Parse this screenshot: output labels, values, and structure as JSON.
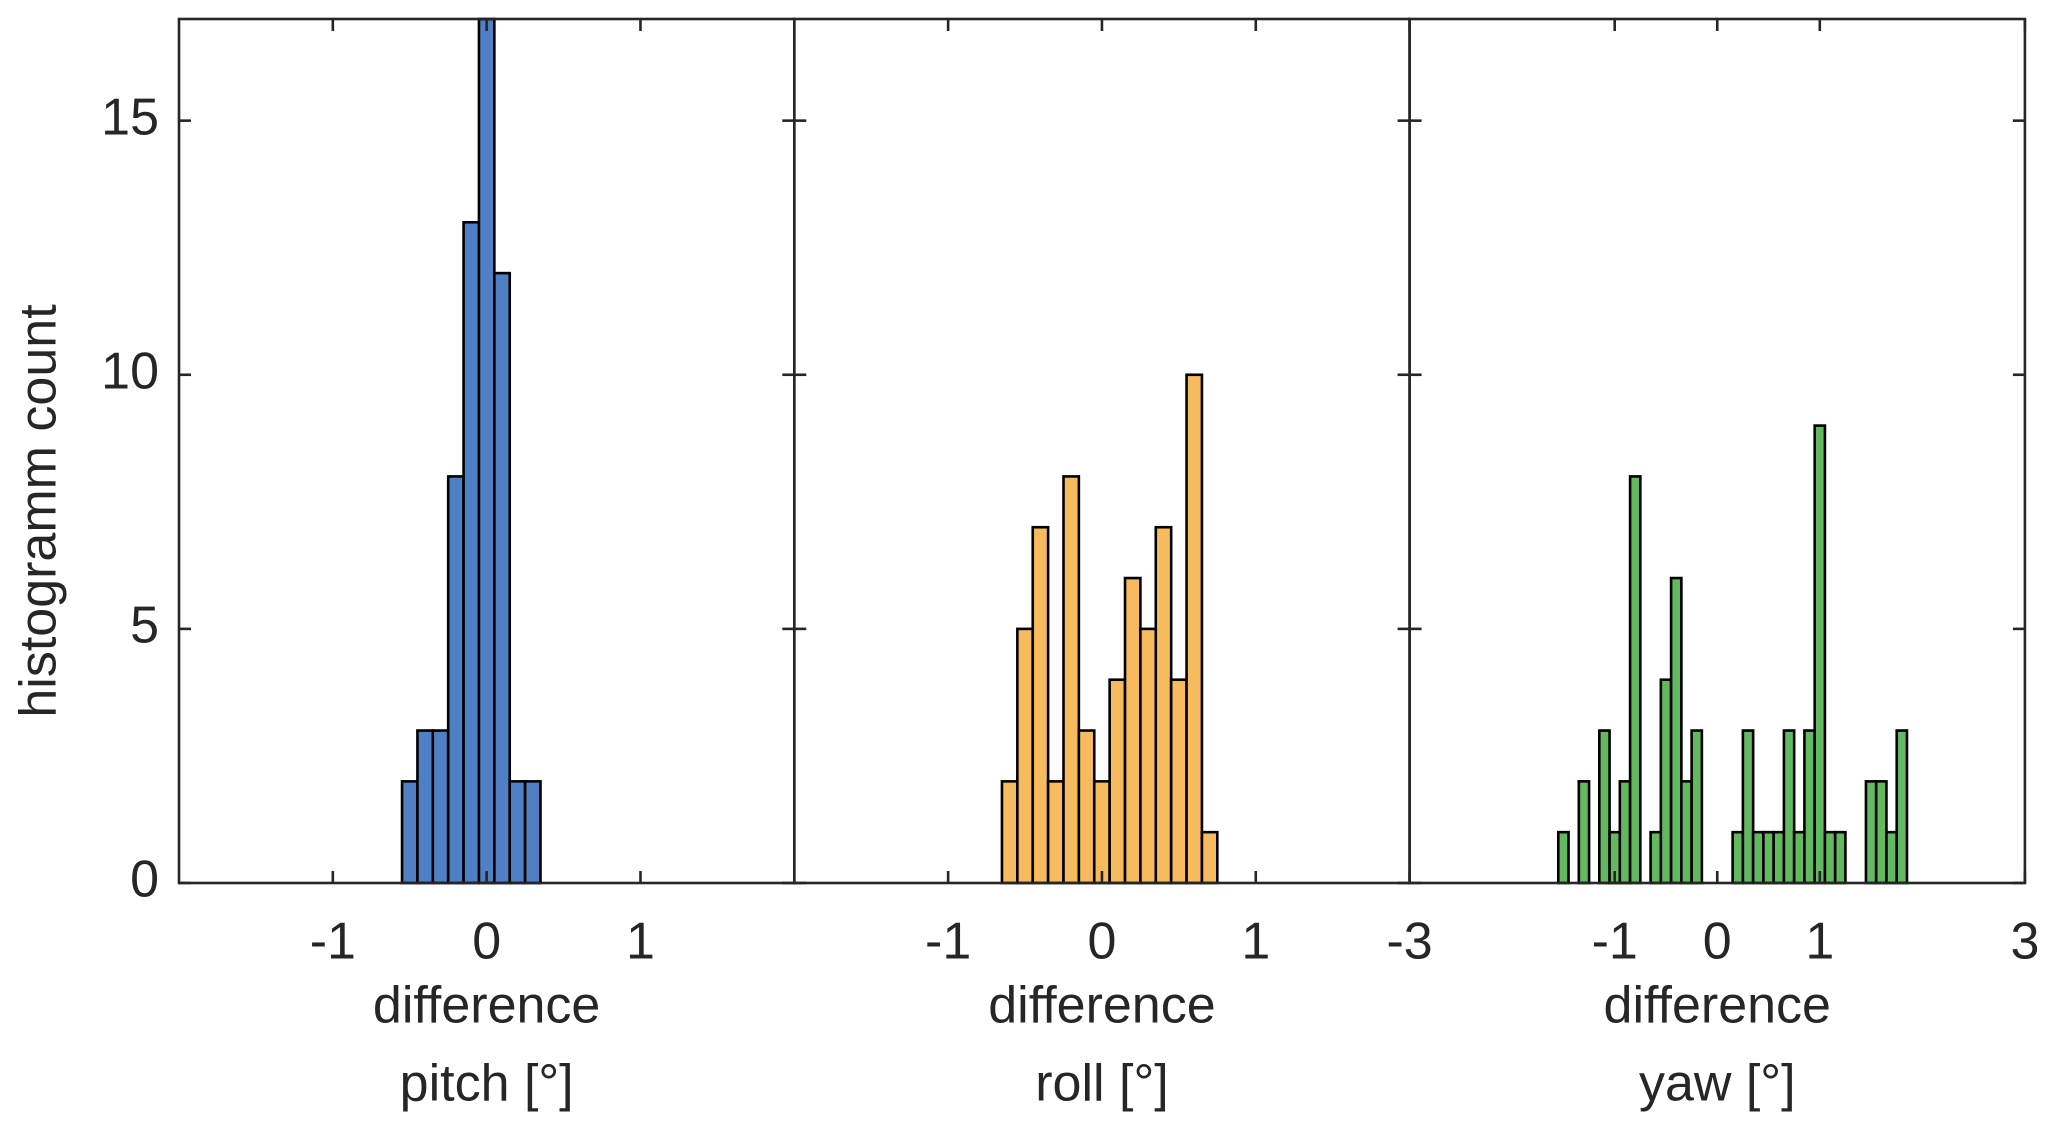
{
  "chart_data": [
    {
      "type": "histogram",
      "ylabel": "histogramm count",
      "xlabel": [
        "difference",
        "pitch [°]"
      ],
      "color": "#4f7fc4",
      "bins": [
        -0.55,
        -0.45,
        -0.35,
        -0.25,
        -0.15,
        -0.05,
        0.05,
        0.15,
        0.25,
        0.35
      ],
      "values": [
        2,
        3,
        3,
        8,
        13,
        17,
        12,
        2,
        2
      ],
      "xlim": [
        -2,
        2
      ],
      "xticks": [
        -1,
        0,
        1
      ],
      "ylim": [
        0,
        17
      ],
      "yticks": [
        0,
        5,
        10,
        15
      ]
    },
    {
      "type": "histogram",
      "xlabel": [
        "difference",
        "roll [°]"
      ],
      "color": "#f7bb5f",
      "bins": [
        -0.65,
        -0.55,
        -0.45,
        -0.35,
        -0.25,
        -0.15,
        -0.05,
        0.05,
        0.15,
        0.25,
        0.35,
        0.45,
        0.55,
        0.65,
        0.75
      ],
      "values": [
        2,
        5,
        7,
        2,
        8,
        3,
        2,
        4,
        6,
        5,
        7,
        4,
        10,
        1
      ],
      "xlim": [
        -2,
        2
      ],
      "xticks": [
        -1,
        0,
        1
      ],
      "ylim": [
        0,
        17
      ]
    },
    {
      "type": "histogram",
      "xlabel": [
        "difference",
        "yaw [°]"
      ],
      "color": "#62b95f",
      "bins": [
        -1.55,
        -1.45,
        -1.35,
        -1.25,
        -1.15,
        -1.05,
        -0.95,
        -0.85,
        -0.75,
        -0.65,
        -0.55,
        -0.45,
        -0.35,
        -0.25,
        -0.15,
        -0.05,
        0.05,
        0.15,
        0.25,
        0.35,
        0.45,
        0.55,
        0.65,
        0.75,
        0.85,
        0.95,
        1.05,
        1.15,
        1.25,
        1.35,
        1.45,
        1.55,
        1.65,
        1.75,
        1.85
      ],
      "values": [
        1,
        0,
        2,
        0,
        3,
        1,
        2,
        8,
        0,
        1,
        4,
        6,
        2,
        3,
        0,
        0,
        0,
        1,
        3,
        1,
        1,
        1,
        3,
        1,
        3,
        9,
        1,
        1,
        0,
        0,
        2,
        2,
        1,
        3
      ],
      "xlim": [
        -3,
        3
      ],
      "xticks": [
        -3,
        -1,
        0,
        1,
        3
      ],
      "ylim": [
        0,
        17
      ]
    }
  ]
}
